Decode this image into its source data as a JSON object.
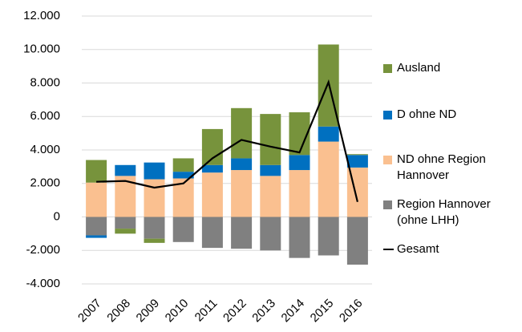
{
  "chart_data": {
    "type": "bar",
    "stacked": true,
    "categories": [
      "2007",
      "2008",
      "2009",
      "2010",
      "2011",
      "2012",
      "2013",
      "2014",
      "2015",
      "2016"
    ],
    "series": [
      {
        "name": "Region Hannover (ohne LHH)",
        "color": "#808080",
        "values": [
          -1100,
          -700,
          -1300,
          -1500,
          -1850,
          -1900,
          -2000,
          -2450,
          -2300,
          -2850
        ]
      },
      {
        "name": "ND ohne Region Hannover",
        "color": "#fac090",
        "values": [
          2050,
          2450,
          2250,
          2300,
          2650,
          2800,
          2450,
          2800,
          4500,
          2950
        ]
      },
      {
        "name": "D ohne ND",
        "color": "#0070c0",
        "values": [
          -150,
          650,
          1000,
          400,
          450,
          700,
          650,
          900,
          900,
          750
        ]
      },
      {
        "name": "Ausland",
        "color": "#77933c",
        "values": [
          1350,
          -300,
          -250,
          800,
          2150,
          3000,
          3050,
          2550,
          4900,
          50
        ]
      },
      {
        "name": "Gesamt",
        "type": "line",
        "color": "#000000",
        "values": [
          2100,
          2150,
          1750,
          2000,
          3500,
          4600,
          4200,
          3850,
          8050,
          900
        ]
      }
    ],
    "ylim": [
      -4000,
      12000
    ],
    "yticks": [
      {
        "value": -4000,
        "label": "-4.000"
      },
      {
        "value": -2000,
        "label": "-2.000"
      },
      0,
      {
        "value": 2000,
        "label": "2.000"
      },
      {
        "value": 4000,
        "label": "4.000"
      },
      {
        "value": 6000,
        "label": "6.000"
      },
      {
        "value": 8000,
        "label": "8.000"
      },
      {
        "value": 10000,
        "label": "10.000"
      },
      {
        "value": 12000,
        "label": "12.000"
      }
    ],
    "grid": true,
    "legend": "right"
  }
}
